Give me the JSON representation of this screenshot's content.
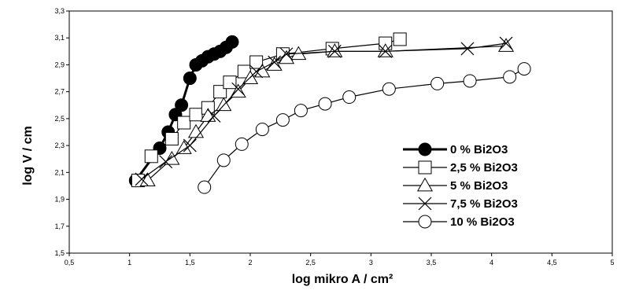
{
  "chart_data": {
    "type": "line",
    "title": "",
    "xlabel": "log mikro A / cm²",
    "ylabel": "log V / cm",
    "xlim": [
      0.5,
      5
    ],
    "ylim": [
      1.5,
      3.3
    ],
    "x_ticks": [
      "0,5",
      "1",
      "1,5",
      "2",
      "2,5",
      "3",
      "3,5",
      "4",
      "4,5",
      "5"
    ],
    "y_ticks": [
      "1,5",
      "1,7",
      "1,9",
      "2,1",
      "2,3",
      "2,5",
      "2,7",
      "2,9",
      "3,1",
      "3,3"
    ],
    "grid": false,
    "legend_position": "bottom-right",
    "series": [
      {
        "name": "0 % Bi2O3",
        "marker": "filled-circle",
        "x": [
          1.05,
          1.25,
          1.32,
          1.38,
          1.43,
          1.5,
          1.55,
          1.6,
          1.65,
          1.7,
          1.75,
          1.8,
          1.85
        ],
        "y": [
          2.04,
          2.28,
          2.4,
          2.53,
          2.6,
          2.8,
          2.9,
          2.93,
          2.96,
          2.98,
          3.0,
          3.03,
          3.07
        ]
      },
      {
        "name": "2,5 % Bi2O3",
        "marker": "square",
        "x": [
          1.07,
          1.18,
          1.35,
          1.45,
          1.55,
          1.65,
          1.75,
          1.83,
          1.95,
          2.05,
          2.27,
          2.68,
          3.12,
          3.24
        ],
        "y": [
          2.04,
          2.22,
          2.35,
          2.47,
          2.53,
          2.58,
          2.7,
          2.77,
          2.85,
          2.92,
          2.98,
          3.02,
          3.06,
          3.09
        ]
      },
      {
        "name": "5 % Bi2O3",
        "marker": "triangle",
        "x": [
          1.15,
          1.35,
          1.45,
          1.55,
          1.65,
          1.78,
          1.9,
          2.0,
          2.1,
          2.2,
          2.3,
          2.4,
          2.7,
          3.12,
          4.12
        ],
        "y": [
          2.04,
          2.2,
          2.28,
          2.4,
          2.52,
          2.6,
          2.7,
          2.8,
          2.85,
          2.9,
          2.95,
          2.98,
          3.0,
          3.0,
          3.04
        ]
      },
      {
        "name": "7,5 % Bi2O3",
        "marker": "x",
        "x": [
          1.1,
          1.3,
          1.5,
          1.7,
          1.9,
          2.05,
          2.2,
          2.3,
          2.7,
          3.12,
          3.8,
          4.12
        ],
        "y": [
          2.05,
          2.18,
          2.3,
          2.52,
          2.72,
          2.85,
          2.92,
          2.98,
          3.0,
          3.0,
          3.02,
          3.06
        ]
      },
      {
        "name": "10 % Bi2O3",
        "marker": "open-circle",
        "x": [
          1.62,
          1.78,
          1.93,
          2.1,
          2.27,
          2.42,
          2.62,
          2.82,
          3.15,
          3.55,
          3.82,
          4.15,
          4.27
        ],
        "y": [
          1.99,
          2.19,
          2.31,
          2.42,
          2.49,
          2.56,
          2.61,
          2.66,
          2.72,
          2.76,
          2.78,
          2.81,
          2.87
        ]
      }
    ]
  }
}
